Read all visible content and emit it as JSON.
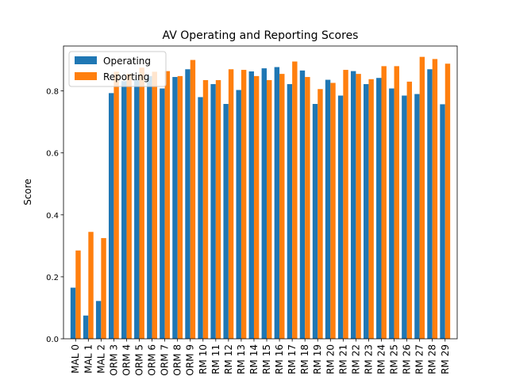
{
  "chart_data": {
    "type": "bar",
    "title": "AV Operating and Reporting Scores",
    "xlabel": "",
    "ylabel": "Score",
    "ylim": [
      0,
      0.945
    ],
    "yticks": [
      0.0,
      0.2,
      0.4,
      0.6,
      0.8
    ],
    "ytick_labels": [
      "0.0",
      "0.2",
      "0.4",
      "0.6",
      "0.8"
    ],
    "grid": false,
    "legend_position": "top-left",
    "categories": [
      "MAL 0",
      "MAL 1",
      "MAL 2",
      "ORM 3",
      "ORM 4",
      "ORM 5",
      "ORM 6",
      "ORM 7",
      "ORM 8",
      "ORM 9",
      "RM 10",
      "RM 11",
      "RM 12",
      "RM 13",
      "RM 14",
      "RM 15",
      "RM 16",
      "RM 17",
      "RM 18",
      "RM 19",
      "RM 20",
      "RM 21",
      "RM 22",
      "RM 23",
      "RM 24",
      "RM 25",
      "RM 26",
      "RM 27",
      "RM 28",
      "RM 29"
    ],
    "series": [
      {
        "name": "Operating",
        "color": "#1f77b4",
        "values": [
          0.165,
          0.075,
          0.122,
          0.793,
          0.832,
          0.838,
          0.848,
          0.808,
          0.845,
          0.87,
          0.78,
          0.822,
          0.758,
          0.803,
          0.863,
          0.873,
          0.877,
          0.822,
          0.866,
          0.758,
          0.836,
          0.785,
          0.864,
          0.822,
          0.842,
          0.808,
          0.785,
          0.79,
          0.87,
          0.757
        ]
      },
      {
        "name": "Reporting",
        "color": "#ff7f0e",
        "values": [
          0.285,
          0.345,
          0.325,
          0.862,
          0.855,
          0.875,
          0.862,
          0.864,
          0.848,
          0.9,
          0.835,
          0.835,
          0.87,
          0.868,
          0.848,
          0.835,
          0.855,
          0.895,
          0.845,
          0.806,
          0.826,
          0.868,
          0.855,
          0.838,
          0.88,
          0.88,
          0.83,
          0.91,
          0.903,
          0.888
        ]
      }
    ]
  }
}
